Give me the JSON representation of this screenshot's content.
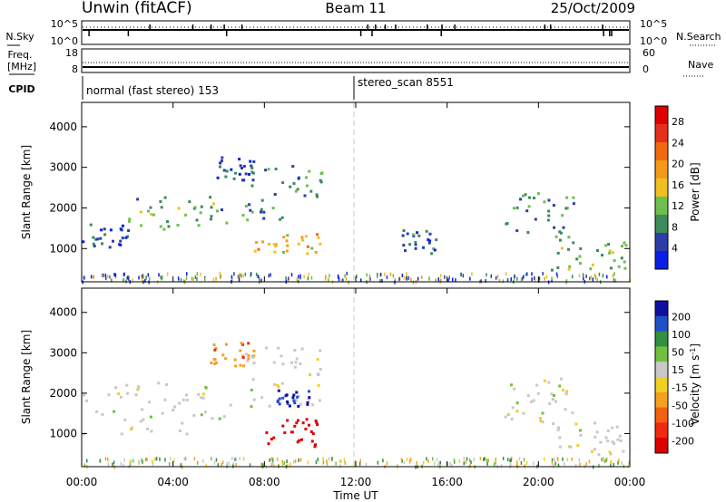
{
  "header": {
    "station": "Unwin (fitACF)",
    "beam": "Beam 11",
    "date": "25/Oct/2009"
  },
  "side_labels": {
    "nsky": "N.Sky",
    "freq": "Freq.",
    "freq_unit": "[MHz]",
    "cpid": "CPID",
    "nsearch": "N.Search",
    "nave": "Nave"
  },
  "top_axes": {
    "noise_ticks_left": [
      "10^5",
      "10^0"
    ],
    "noise_ticks_right": [
      "10^5",
      "10^0"
    ],
    "freq_ticks_left": [
      "18",
      "8"
    ],
    "nave_ticks_right": [
      "60",
      "0"
    ]
  },
  "cpid": {
    "segments": [
      {
        "label": "normal (fast stereo) 153",
        "start_hour": 0
      },
      {
        "label": "stereo_scan 8551",
        "start_hour": 12
      }
    ]
  },
  "time_axis": {
    "label": "Time UT",
    "ticks": [
      "00:00",
      "04:00",
      "08:00",
      "12:00",
      "16:00",
      "20:00",
      "00:00"
    ]
  },
  "colors": {
    "power": [
      "#0a1fe6",
      "#2b3ea8",
      "#3d8a5a",
      "#6fbf4d",
      "#f0c020",
      "#f59a18",
      "#f06a10",
      "#e6301a",
      "#dc0000"
    ],
    "velocity": [
      "#1010a0",
      "#2050c8",
      "#309040",
      "#70c040",
      "#c8c8c8",
      "#f0d020",
      "#f5a020",
      "#f56010",
      "#ef2a10",
      "#dc0000"
    ]
  },
  "chart_data": [
    {
      "type": "heatmap",
      "title": "",
      "xlabel": "",
      "ylabel": "Slant Range [km]",
      "xlim": [
        0,
        24
      ],
      "ylim": [
        180,
        4600
      ],
      "yticks": [
        "1000",
        "2000",
        "3000",
        "4000"
      ],
      "colorbar": {
        "label": "Power [dB]",
        "ticks": [
          "4",
          "8",
          "12",
          "16",
          "20",
          "24",
          "28"
        ],
        "range": [
          0,
          30
        ]
      },
      "echo_regions": [
        {
          "hours": [
            0.0,
            2.0
          ],
          "range_km": [
            1000,
            1700
          ],
          "power_db": 6
        },
        {
          "hours": [
            2.0,
            6.5
          ],
          "range_km": [
            1500,
            2300
          ],
          "power_db": 12
        },
        {
          "hours": [
            5.5,
            7.5
          ],
          "range_km": [
            2700,
            3300
          ],
          "power_db": 5
        },
        {
          "hours": [
            7.0,
            10.5
          ],
          "range_km": [
            1700,
            3200
          ],
          "power_db": 10
        },
        {
          "hours": [
            7.5,
            10.5
          ],
          "range_km": [
            900,
            1400
          ],
          "power_db": 20
        },
        {
          "hours": [
            14.0,
            15.5
          ],
          "range_km": [
            900,
            1500
          ],
          "power_db": 8
        },
        {
          "hours": [
            18.5,
            21.5
          ],
          "range_km": [
            1300,
            2400
          ],
          "power_db": 10
        },
        {
          "hours": [
            20.5,
            24.0
          ],
          "range_km": [
            500,
            1300
          ],
          "power_db": 12
        }
      ]
    },
    {
      "type": "heatmap",
      "title": "",
      "xlabel": "Time UT",
      "ylabel": "Slant Range [km]",
      "xlim": [
        0,
        24
      ],
      "ylim": [
        180,
        4600
      ],
      "yticks": [
        "1000",
        "2000",
        "3000",
        "4000"
      ],
      "colorbar": {
        "label": "Velocity [m s^-1]",
        "ticks": [
          "200",
          "100",
          "50",
          "15",
          "-15",
          "-50",
          "-100",
          "-200"
        ],
        "range": [
          -250,
          250
        ]
      },
      "echo_regions": [
        {
          "hours": [
            0.0,
            6.5
          ],
          "range_km": [
            1000,
            2300
          ],
          "velocity": 0
        },
        {
          "hours": [
            5.5,
            7.5
          ],
          "range_km": [
            2700,
            3300
          ],
          "velocity": -60
        },
        {
          "hours": [
            7.0,
            10.5
          ],
          "range_km": [
            1700,
            3200
          ],
          "velocity": 0
        },
        {
          "hours": [
            8.5,
            10.0
          ],
          "range_km": [
            1700,
            2100
          ],
          "velocity": 150
        },
        {
          "hours": [
            8.0,
            10.5
          ],
          "range_km": [
            700,
            1400
          ],
          "velocity": -200
        },
        {
          "hours": [
            18.5,
            21.5
          ],
          "range_km": [
            1300,
            2400
          ],
          "velocity": 0
        },
        {
          "hours": [
            20.5,
            24.0
          ],
          "range_km": [
            500,
            1300
          ],
          "velocity": 0
        }
      ]
    }
  ]
}
